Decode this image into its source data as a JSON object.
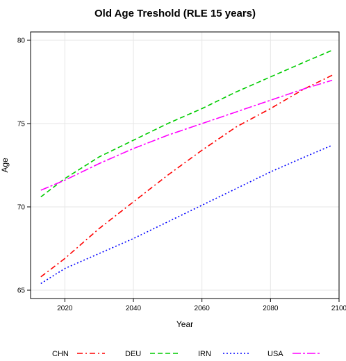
{
  "chart_data": {
    "type": "line",
    "title": "Old Age Treshold (RLE 15 years)",
    "xlabel": "Year",
    "ylabel": "Age",
    "xlim": [
      2010,
      2100
    ],
    "ylim": [
      64.5,
      80.5
    ],
    "xticks": [
      2020,
      2040,
      2060,
      2080,
      2100
    ],
    "yticks": [
      65,
      70,
      75,
      80
    ],
    "grid": true,
    "legend_position": "bottom",
    "series": [
      {
        "name": "CHN",
        "color": "#ff0000",
        "dash": "dashdot",
        "x": [
          2013,
          2020,
          2030,
          2040,
          2050,
          2060,
          2070,
          2080,
          2090,
          2098
        ],
        "y": [
          65.8,
          66.9,
          68.7,
          70.3,
          71.9,
          73.4,
          74.8,
          75.9,
          77.1,
          77.9
        ]
      },
      {
        "name": "DEU",
        "color": "#00cc00",
        "dash": "dashed",
        "x": [
          2013,
          2020,
          2030,
          2040,
          2050,
          2060,
          2070,
          2080,
          2090,
          2098
        ],
        "y": [
          70.6,
          71.7,
          73.0,
          74.0,
          75.0,
          75.9,
          76.9,
          77.8,
          78.7,
          79.4
        ]
      },
      {
        "name": "IRN",
        "color": "#0000ff",
        "dash": "dotted",
        "x": [
          2013,
          2020,
          2030,
          2040,
          2050,
          2060,
          2070,
          2080,
          2090,
          2098
        ],
        "y": [
          65.4,
          66.3,
          67.2,
          68.1,
          69.1,
          70.1,
          71.1,
          72.1,
          73.0,
          73.7
        ]
      },
      {
        "name": "USA",
        "color": "#ff00ff",
        "dash": "longdash",
        "x": [
          2013,
          2020,
          2030,
          2040,
          2050,
          2060,
          2070,
          2080,
          2090,
          2098
        ],
        "y": [
          71.0,
          71.6,
          72.6,
          73.5,
          74.3,
          75.0,
          75.7,
          76.4,
          77.1,
          77.6
        ]
      }
    ]
  }
}
